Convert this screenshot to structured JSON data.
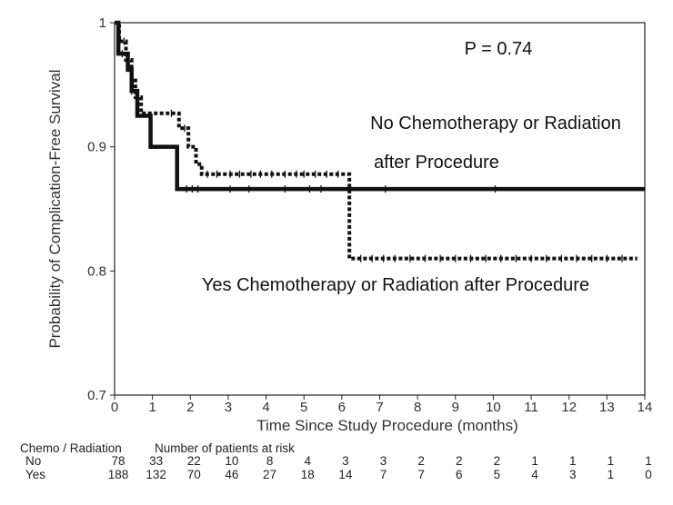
{
  "chart_data": {
    "type": "line",
    "subtype": "kaplan-meier",
    "xlabel": "Time Since Study Procedure (months)",
    "ylabel": "Probability of Complication-Free Survival",
    "xlim": [
      0,
      14
    ],
    "ylim": [
      0.7,
      1
    ],
    "xticks": [
      "0",
      "1",
      "2",
      "3",
      "4",
      "5",
      "6",
      "7",
      "8",
      "9",
      "10",
      "11",
      "12",
      "13",
      "14"
    ],
    "yticks": [
      "0.7",
      "0.8",
      "0.9",
      "1"
    ],
    "grid": false,
    "annotations": {
      "pvalue": "P = 0.74",
      "no_line1": "No Chemotherapy or Radiation",
      "no_line2": "after Procedure",
      "yes_line1": "Yes Chemotherapy or Radiation after Procedure"
    },
    "series": [
      {
        "name": "No Chemotherapy or Radiation after Procedure",
        "style": "solid",
        "steps": [
          [
            0,
            1.0
          ],
          [
            0.1,
            0.975
          ],
          [
            0.35,
            0.962
          ],
          [
            0.45,
            0.945
          ],
          [
            0.6,
            0.925
          ],
          [
            0.95,
            0.9
          ],
          [
            1.65,
            0.866
          ],
          [
            14,
            0.866
          ]
        ],
        "censor": [
          0.2,
          0.45,
          1.9,
          2.05,
          2.2,
          3.05,
          3.55,
          4.5,
          5.15,
          5.45,
          7.15,
          10.05
        ]
      },
      {
        "name": "Yes Chemotherapy or Radiation after Procedure",
        "style": "dotted",
        "steps": [
          [
            0,
            1.0
          ],
          [
            0.12,
            0.985
          ],
          [
            0.3,
            0.97
          ],
          [
            0.45,
            0.955
          ],
          [
            0.55,
            0.94
          ],
          [
            0.7,
            0.927
          ],
          [
            1.7,
            0.915
          ],
          [
            1.95,
            0.9
          ],
          [
            2.15,
            0.886
          ],
          [
            2.3,
            0.878
          ],
          [
            6.2,
            0.81
          ],
          [
            13.8,
            0.81
          ]
        ],
        "censor": [
          0.25,
          0.35,
          1.5,
          1.85,
          2.45,
          2.7,
          3.05,
          3.3,
          3.6,
          3.85,
          4.15,
          4.5,
          4.8,
          5.0,
          5.3,
          5.6,
          5.9,
          6.5,
          6.8,
          7.1,
          7.4,
          7.8,
          8.2,
          8.6,
          9.0,
          9.4,
          9.8,
          10.2,
          10.6,
          11.0,
          11.4,
          11.8,
          12.2,
          12.6,
          13.0,
          13.4
        ]
      }
    ],
    "risk_table": {
      "group_header": "Chemo / Radiation",
      "count_header": "Number of patients at risk",
      "rows": [
        {
          "label": "No",
          "values": [
            "78",
            "33",
            "22",
            "10",
            "8",
            "4",
            "3",
            "3",
            "2",
            "2",
            "2",
            "1",
            "1",
            "1",
            "1"
          ]
        },
        {
          "label": "Yes",
          "values": [
            "188",
            "132",
            "70",
            "46",
            "27",
            "18",
            "14",
            "7",
            "7",
            "6",
            "5",
            "4",
            "3",
            "1",
            "0"
          ]
        }
      ]
    }
  }
}
